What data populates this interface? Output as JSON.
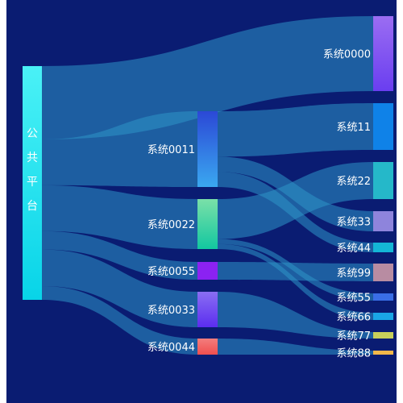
{
  "chart_data": {
    "type": "sankey",
    "nodes": [
      {
        "name": "公共平台",
        "color_top": "#4af1f6",
        "color_bottom": "#08d4e8"
      },
      {
        "name": "系统0011",
        "color_top": "#2b48d6",
        "color_bottom": "#3aa8f0"
      },
      {
        "name": "系统0022",
        "color_top": "#7ae0a8",
        "color_bottom": "#12c7a0"
      },
      {
        "name": "系统0055",
        "color_top": "#8b22f2",
        "color_bottom": "#8b22f2"
      },
      {
        "name": "系统0033",
        "color_top": "#8a6ef2",
        "color_bottom": "#5b2df0"
      },
      {
        "name": "系统0044",
        "color_top": "#f37d7d",
        "color_bottom": "#f04f4f"
      },
      {
        "name": "系统0000",
        "color_top": "#9b6df2",
        "color_bottom": "#6a3ef0"
      },
      {
        "name": "系统11",
        "color_top": "#0f82e8",
        "color_bottom": "#0f82e8"
      },
      {
        "name": "系统22",
        "color_top": "#25b8c9",
        "color_bottom": "#25b8c9"
      },
      {
        "name": "系统33",
        "color_top": "#8e84dc",
        "color_bottom": "#8e84dc"
      },
      {
        "name": "系统44",
        "color_top": "#14b6d6",
        "color_bottom": "#14b6d6"
      },
      {
        "name": "系统99",
        "color_top": "#b88ca2",
        "color_bottom": "#b88ca2"
      },
      {
        "name": "系统55",
        "color_top": "#3a6ee6",
        "color_bottom": "#3a6ee6"
      },
      {
        "name": "系统66",
        "color_top": "#1aa6e6",
        "color_bottom": "#1aa6e6"
      },
      {
        "name": "系统77",
        "color_top": "#c8d05a",
        "color_bottom": "#c8d05a"
      },
      {
        "name": "系统88",
        "color_top": "#f2b84a",
        "color_bottom": "#f2b84a"
      }
    ],
    "links": [
      {
        "source": "公共平台",
        "target": "系统0000",
        "value": 16
      },
      {
        "source": "公共平台",
        "target": "系统0011",
        "value": 10
      },
      {
        "source": "公共平台",
        "target": "系统0022",
        "value": 10
      },
      {
        "source": "公共平台",
        "target": "系统0055",
        "value": 4
      },
      {
        "source": "公共平台",
        "target": "系统0033",
        "value": 8
      },
      {
        "source": "公共平台",
        "target": "系统0044",
        "value": 3
      },
      {
        "source": "系统0011",
        "target": "系统11",
        "value": 6
      },
      {
        "source": "系统0011",
        "target": "系统33",
        "value": 2
      },
      {
        "source": "系统0011",
        "target": "系统44",
        "value": 2
      },
      {
        "source": "系统0022",
        "target": "系统22",
        "value": 8
      },
      {
        "source": "系统0022",
        "target": "系统55",
        "value": 1
      },
      {
        "source": "系统0022",
        "target": "系统66",
        "value": 1
      },
      {
        "source": "系统0055",
        "target": "系统99",
        "value": 4
      },
      {
        "source": "系统0033",
        "target": "系统77",
        "value": 1
      },
      {
        "source": "系统0044",
        "target": "系统88",
        "value": 1
      }
    ],
    "colors": {
      "link": "#2d96c8",
      "background": "#0a1c72",
      "label": "#ffffff"
    }
  }
}
